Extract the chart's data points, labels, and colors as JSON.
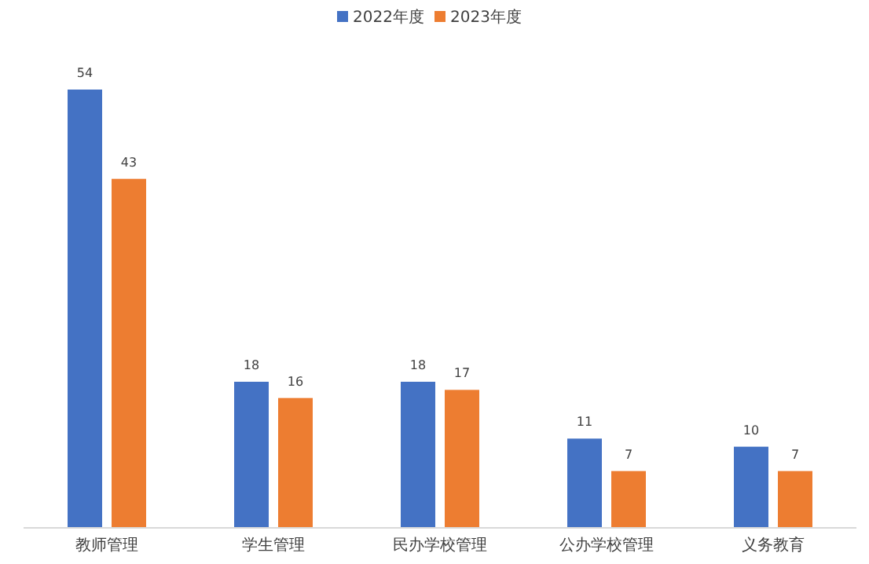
{
  "chart_data": {
    "type": "bar",
    "categories": [
      "教师管理",
      "学生管理",
      "民办学校管理",
      "公办学校管理",
      "义务教育"
    ],
    "series": [
      {
        "name": "2022年度",
        "color": "#4472c4",
        "values": [
          54,
          18,
          18,
          11,
          10
        ]
      },
      {
        "name": "2023年度",
        "color": "#ed7d31",
        "values": [
          43,
          16,
          17,
          7,
          7
        ]
      }
    ],
    "data_labels": true,
    "legend": "top"
  }
}
